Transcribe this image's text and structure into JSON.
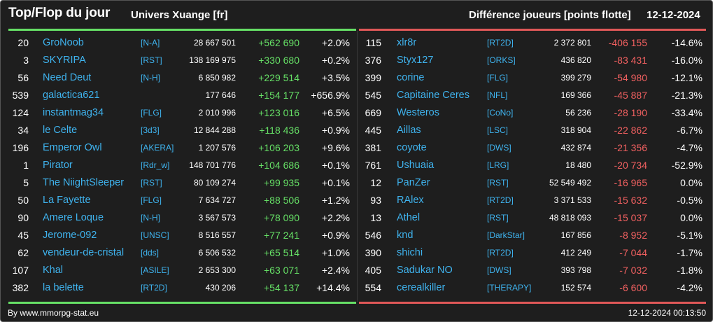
{
  "header": {
    "title": "Top/Flop du jour",
    "subtitle": "Univers Xuange [fr]",
    "metric": "Différence joueurs [points flotte]",
    "date": "12-12-2024"
  },
  "top": [
    {
      "rank": "20",
      "name": "GroNoob",
      "tag": "[N-A]",
      "points": "28 667 501",
      "diff": "+562 690",
      "pct": "+2.0%"
    },
    {
      "rank": "3",
      "name": "SKYRIPA",
      "tag": "[RST]",
      "points": "138 169 975",
      "diff": "+330 680",
      "pct": "+0.2%"
    },
    {
      "rank": "56",
      "name": "Need Deut",
      "tag": "[N-H]",
      "points": "6 850 982",
      "diff": "+229 514",
      "pct": "+3.5%"
    },
    {
      "rank": "539",
      "name": "galactica621",
      "tag": "",
      "points": "177 646",
      "diff": "+154 177",
      "pct": "+656.9%"
    },
    {
      "rank": "124",
      "name": "instantmag34",
      "tag": "[FLG]",
      "points": "2 010 996",
      "diff": "+123 016",
      "pct": "+6.5%"
    },
    {
      "rank": "34",
      "name": "le Celte",
      "tag": "[3d3]",
      "points": "12 844 288",
      "diff": "+118 436",
      "pct": "+0.9%"
    },
    {
      "rank": "196",
      "name": "Emperor Owl",
      "tag": "[AKERA]",
      "points": "1 207 576",
      "diff": "+106 203",
      "pct": "+9.6%"
    },
    {
      "rank": "1",
      "name": "Pirator",
      "tag": "[Rdr_w]",
      "points": "148 701 776",
      "diff": "+104 686",
      "pct": "+0.1%"
    },
    {
      "rank": "5",
      "name": "The NiightSleeper",
      "tag": "[RST]",
      "points": "80 109 274",
      "diff": "+99 935",
      "pct": "+0.1%"
    },
    {
      "rank": "50",
      "name": "La Fayette",
      "tag": "[FLG]",
      "points": "7 634 727",
      "diff": "+88 506",
      "pct": "+1.2%"
    },
    {
      "rank": "90",
      "name": "Amere Loque",
      "tag": "[N-H]",
      "points": "3 567 573",
      "diff": "+78 090",
      "pct": "+2.2%"
    },
    {
      "rank": "45",
      "name": "Jerome-092",
      "tag": "[UNSC]",
      "points": "8 516 557",
      "diff": "+77 241",
      "pct": "+0.9%"
    },
    {
      "rank": "62",
      "name": "vendeur-de-cristal",
      "tag": "[dds]",
      "points": "6 506 532",
      "diff": "+65 514",
      "pct": "+1.0%"
    },
    {
      "rank": "107",
      "name": "Khal",
      "tag": "[ASILE]",
      "points": "2 653 300",
      "diff": "+63 071",
      "pct": "+2.4%"
    },
    {
      "rank": "382",
      "name": "la belette",
      "tag": "[RT2D]",
      "points": "430 206",
      "diff": "+54 137",
      "pct": "+14.4%"
    }
  ],
  "flop": [
    {
      "rank": "115",
      "name": "xlr8r",
      "tag": "[RT2D]",
      "points": "2 372 801",
      "diff": "-406 155",
      "pct": "-14.6%"
    },
    {
      "rank": "376",
      "name": "Styx127",
      "tag": "[ORKS]",
      "points": "436 820",
      "diff": "-83 431",
      "pct": "-16.0%"
    },
    {
      "rank": "399",
      "name": "corine",
      "tag": "[FLG]",
      "points": "399 279",
      "diff": "-54 980",
      "pct": "-12.1%"
    },
    {
      "rank": "545",
      "name": "Capitaine Ceres",
      "tag": "[NFL]",
      "points": "169 366",
      "diff": "-45 887",
      "pct": "-21.3%"
    },
    {
      "rank": "669",
      "name": "Westeros",
      "tag": "[CoNo]",
      "points": "56 236",
      "diff": "-28 190",
      "pct": "-33.4%"
    },
    {
      "rank": "445",
      "name": "Aillas",
      "tag": "[LSC]",
      "points": "318 904",
      "diff": "-22 862",
      "pct": "-6.7%"
    },
    {
      "rank": "381",
      "name": "coyote",
      "tag": "[DWS]",
      "points": "432 874",
      "diff": "-21 356",
      "pct": "-4.7%"
    },
    {
      "rank": "761",
      "name": "Ushuaia",
      "tag": "[LRG]",
      "points": "18 480",
      "diff": "-20 734",
      "pct": "-52.9%"
    },
    {
      "rank": "12",
      "name": "PanZer",
      "tag": "[RST]",
      "points": "52 549 492",
      "diff": "-16 965",
      "pct": "0.0%"
    },
    {
      "rank": "93",
      "name": "RAlex",
      "tag": "[RT2D]",
      "points": "3 371 533",
      "diff": "-15 632",
      "pct": "-0.5%"
    },
    {
      "rank": "13",
      "name": "Athel",
      "tag": "[RST]",
      "points": "48 818 093",
      "diff": "-15 037",
      "pct": "0.0%"
    },
    {
      "rank": "546",
      "name": "knd",
      "tag": "[DarkStar]",
      "points": "167 856",
      "diff": "-8 952",
      "pct": "-5.1%"
    },
    {
      "rank": "390",
      "name": "shichi",
      "tag": "[RT2D]",
      "points": "412 249",
      "diff": "-7 044",
      "pct": "-1.7%"
    },
    {
      "rank": "405",
      "name": "Sadukar NO",
      "tag": "[DWS]",
      "points": "393 798",
      "diff": "-7 032",
      "pct": "-1.8%"
    },
    {
      "rank": "554",
      "name": "cerealkiller",
      "tag": "[THERAPY]",
      "points": "152 574",
      "diff": "-6 600",
      "pct": "-4.2%"
    }
  ],
  "footer": {
    "source": "By www.mmorpg-stat.eu",
    "timestamp": "12-12-2024 00:13:50"
  },
  "colors": {
    "background": "#1e1e1e",
    "link": "#3fb3ee",
    "gain": "#66e066",
    "loss": "#f06060"
  }
}
